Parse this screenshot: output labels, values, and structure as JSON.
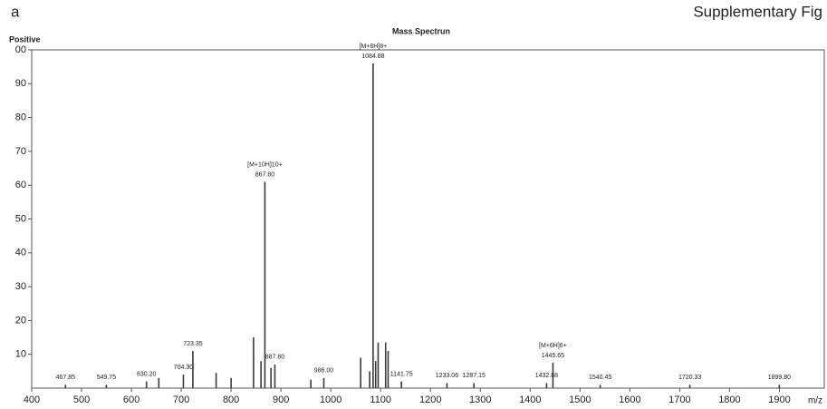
{
  "panel_label": "a",
  "figure_caption": "Supplementary Fig",
  "chart_data": {
    "type": "stick",
    "title": "Mass Spectrun",
    "mode_label": "Positive",
    "x_label": "m/z",
    "xlim": [
      400,
      1990
    ],
    "xticks": [
      400,
      500,
      600,
      700,
      800,
      900,
      1000,
      1100,
      1200,
      1300,
      1400,
      1500,
      1600,
      1700,
      1800,
      1900
    ],
    "ylim": [
      0,
      100
    ],
    "yticks": [
      10,
      20,
      30,
      40,
      50,
      60,
      70,
      80,
      90,
      {
        "value": 100,
        "label": "00"
      }
    ],
    "color": "#3a3a3a",
    "x": [
      467.85,
      549.75,
      630.2,
      655,
      704.3,
      723.35,
      770,
      800,
      845,
      860,
      867.8,
      880,
      887.8,
      960,
      986.0,
      1060,
      1078,
      1084.88,
      1090,
      1095,
      1110,
      1115,
      1141.75,
      1233.06,
      1287.15,
      1432.88,
      1445.65,
      1540.45,
      1720.33,
      1899.8
    ],
    "values": [
      1,
      1,
      2,
      3,
      4,
      11,
      4.5,
      3,
      15,
      8,
      61,
      6,
      7,
      2.5,
      3,
      9,
      5,
      96,
      8,
      13.5,
      13.5,
      11,
      2,
      1.5,
      1.5,
      1.5,
      7.5,
      1,
      1,
      1
    ],
    "labels": [
      "467.85",
      "549.75",
      "630.20",
      null,
      "704.30",
      "723.35",
      null,
      null,
      null,
      null,
      "867.80",
      null,
      "887.80",
      null,
      "986.00",
      null,
      null,
      "1084.88",
      null,
      null,
      null,
      null,
      "1141.75",
      "1233.06",
      "1287.15",
      "1432.88",
      "1445.65",
      "1540.45",
      "1720.33",
      "1899.80"
    ],
    "ion_labels": [
      null,
      null,
      null,
      null,
      null,
      null,
      null,
      null,
      null,
      null,
      "[M+10H]10+",
      null,
      null,
      null,
      null,
      null,
      null,
      "[M+8H]8+",
      null,
      null,
      null,
      null,
      null,
      null,
      null,
      null,
      "[M+6H]6+",
      null,
      null,
      null
    ]
  }
}
